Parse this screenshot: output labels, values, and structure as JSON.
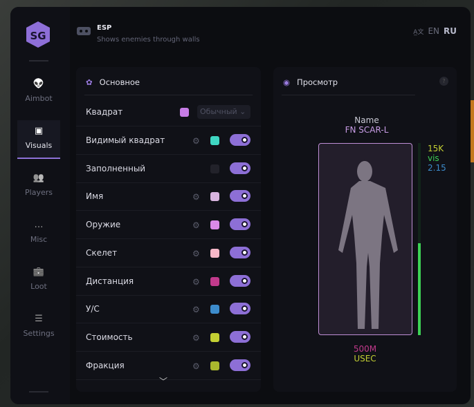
{
  "header": {
    "title": "ESP",
    "subtitle": "Shows enemies through walls",
    "lang_en": "EN",
    "lang_ru": "RU"
  },
  "sidebar": {
    "items": [
      {
        "label": "Aimbot",
        "icon": "alien-icon"
      },
      {
        "label": "Visuals",
        "icon": "vr-goggles-icon",
        "active": true
      },
      {
        "label": "Players",
        "icon": "users-icon"
      },
      {
        "label": "Misc",
        "icon": "chat-dots-icon"
      },
      {
        "label": "Loot",
        "icon": "toolbox-icon"
      },
      {
        "label": "Settings",
        "icon": "list-icon"
      }
    ]
  },
  "main": {
    "title": "Основное",
    "square": {
      "label": "Квадрат",
      "color": "#c77de6",
      "mode": "Обычный"
    },
    "rows": [
      {
        "label": "Видимый квадрат",
        "color": "#3fd6c2",
        "gear": true,
        "on": true
      },
      {
        "label": "Заполненный",
        "color": "#22222a",
        "gear": false,
        "on": true
      },
      {
        "label": "Имя",
        "color": "#d8b4df",
        "gear": true,
        "on": true
      },
      {
        "label": "Оружие",
        "color": "#d98ae8",
        "gear": true,
        "on": true
      },
      {
        "label": "Скелет",
        "color": "#f7b8c8",
        "gear": true,
        "on": true
      },
      {
        "label": "Дистанция",
        "color": "#c23a8c",
        "gear": true,
        "on": true
      },
      {
        "label": "У/С",
        "color": "#3d8ccc",
        "gear": true,
        "on": true
      },
      {
        "label": "Стоимость",
        "color": "#c3cf33",
        "gear": true,
        "on": true
      },
      {
        "label": "Фракция",
        "color": "#a9b82e",
        "gear": true,
        "on": true
      }
    ]
  },
  "preview": {
    "title": "Просмотр",
    "help": "?",
    "name_label": "Name",
    "weapon": "FN SCAR-L",
    "value": "15K",
    "visible": "vis",
    "kd": "2.15",
    "distance": "500M",
    "faction": "USEC",
    "health_percent": 48
  }
}
